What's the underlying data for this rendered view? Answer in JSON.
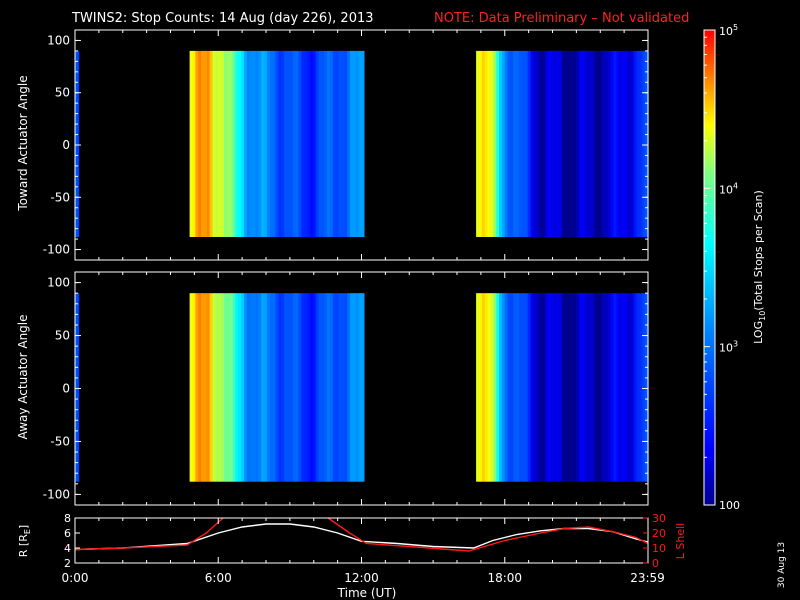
{
  "header": {
    "title": "TWINS2: Stop Counts: 14 Aug (day 226), 2013",
    "note": "NOTE: Data Preliminary – Not validated",
    "note_color": "#ff2020"
  },
  "footer": {
    "stamp": "30 Aug 13"
  },
  "chart_data": [
    {
      "type": "heatmap",
      "panel": "top",
      "ylabel": "Toward Actuator Angle",
      "ylim": [
        -110,
        110
      ],
      "yticks": [
        -100,
        -50,
        0,
        50,
        100
      ],
      "xlim_hours": [
        0,
        24
      ],
      "data_extent_deg": [
        -88,
        90
      ],
      "segments_hours": [
        [
          0,
          0.15
        ],
        [
          4.8,
          12.1
        ],
        [
          16.8,
          24
        ]
      ],
      "colorbar_log_range": [
        100,
        100000
      ],
      "columns": [
        {
          "h": 0.1,
          "v": 2.8
        },
        {
          "h": 4.9,
          "v": 4.6
        },
        {
          "h": 5.5,
          "v": 4.5
        },
        {
          "h": 6.2,
          "v": 4.4
        },
        {
          "h": 6.8,
          "v": 3.6
        },
        {
          "h": 7.5,
          "v": 3.2
        },
        {
          "h": 8.5,
          "v": 2.9
        },
        {
          "h": 9.8,
          "v": 2.6
        },
        {
          "h": 11.0,
          "v": 2.9
        },
        {
          "h": 12.0,
          "v": 3.1
        },
        {
          "h": 16.9,
          "v": 4.6
        },
        {
          "h": 17.3,
          "v": 4.4
        },
        {
          "h": 18.0,
          "v": 3.2
        },
        {
          "h": 19.5,
          "v": 2.2
        },
        {
          "h": 21.0,
          "v": 2.1
        },
        {
          "h": 22.5,
          "v": 2.2
        },
        {
          "h": 23.8,
          "v": 2.6
        }
      ]
    },
    {
      "type": "heatmap",
      "panel": "middle",
      "ylabel": "Away Actuator Angle",
      "ylim": [
        -110,
        110
      ],
      "yticks": [
        -100,
        -50,
        0,
        50,
        100
      ],
      "xlim_hours": [
        0,
        24
      ],
      "data_extent_deg": [
        -88,
        90
      ],
      "segments_hours": [
        [
          0,
          0.15
        ],
        [
          4.8,
          12.1
        ],
        [
          16.8,
          24
        ]
      ],
      "colorbar_log_range": [
        100,
        100000
      ],
      "columns": [
        {
          "h": 0.1,
          "v": 2.8
        },
        {
          "h": 4.9,
          "v": 4.6
        },
        {
          "h": 5.5,
          "v": 4.5
        },
        {
          "h": 6.2,
          "v": 4.3
        },
        {
          "h": 6.8,
          "v": 3.5
        },
        {
          "h": 7.5,
          "v": 3.1
        },
        {
          "h": 8.5,
          "v": 2.9
        },
        {
          "h": 9.8,
          "v": 2.6
        },
        {
          "h": 11.0,
          "v": 2.9
        },
        {
          "h": 12.0,
          "v": 3.1
        },
        {
          "h": 16.9,
          "v": 4.6
        },
        {
          "h": 17.3,
          "v": 4.4
        },
        {
          "h": 18.0,
          "v": 3.1
        },
        {
          "h": 19.5,
          "v": 2.2
        },
        {
          "h": 21.0,
          "v": 2.1
        },
        {
          "h": 22.5,
          "v": 2.2
        },
        {
          "h": 23.8,
          "v": 2.6
        }
      ]
    },
    {
      "type": "line",
      "panel": "bottom",
      "ylabel_left": "R [R",
      "ylabel_left_sub": "E",
      "ylabel_left_tail": "]",
      "ylabel_right": "L Shell",
      "ylim_left": [
        2,
        8
      ],
      "yticks_left": [
        2,
        4,
        6,
        8
      ],
      "ylim_right": [
        0,
        30
      ],
      "yticks_right": [
        0,
        10,
        20,
        30
      ],
      "xlabel": "Time (UT)",
      "xticks": [
        "0:00",
        "6:00",
        "12:00",
        "18:00",
        "23:59"
      ],
      "xticks_hours": [
        0,
        6,
        12,
        18,
        23.98
      ],
      "series": [
        {
          "name": "R",
          "axis": "left",
          "color": "#ffffff",
          "x": [
            0,
            2,
            4.7,
            6,
            7,
            8,
            9,
            10,
            11,
            12,
            13.5,
            15,
            16.7,
            17.5,
            18.5,
            19.5,
            20.5,
            21.5,
            22.5,
            23.5,
            24
          ],
          "y": [
            3.8,
            4.0,
            4.6,
            6.0,
            6.8,
            7.2,
            7.2,
            6.8,
            6.0,
            4.9,
            4.6,
            4.2,
            4.0,
            5.0,
            5.8,
            6.3,
            6.6,
            6.6,
            6.2,
            5.2,
            4.8
          ]
        },
        {
          "name": "L Shell",
          "axis": "right",
          "color": "#ff1a1a",
          "x": [
            0,
            2,
            4.7,
            5.5,
            6.2,
            null,
            10.6,
            11.5,
            12.2,
            14,
            16.5,
            18,
            19.5,
            20.5,
            21.5,
            22.5,
            23.5,
            24
          ],
          "y": [
            9,
            10,
            12,
            20,
            30,
            null,
            30,
            20,
            13,
            11,
            8,
            15,
            20,
            23,
            24,
            21,
            17,
            13
          ]
        }
      ]
    }
  ],
  "colorbar": {
    "label_prefix": "LOG",
    "label_sub": "10",
    "label_suffix": "(Total Stops per Scan)",
    "ticks": [
      {
        "base": "10",
        "exp": "5",
        "value": 100000
      },
      {
        "base": "10",
        "exp": "4",
        "value": 10000
      },
      {
        "base": "10",
        "exp": "3",
        "value": 1000
      },
      {
        "base": "100",
        "exp": "",
        "value": 100
      }
    ]
  }
}
